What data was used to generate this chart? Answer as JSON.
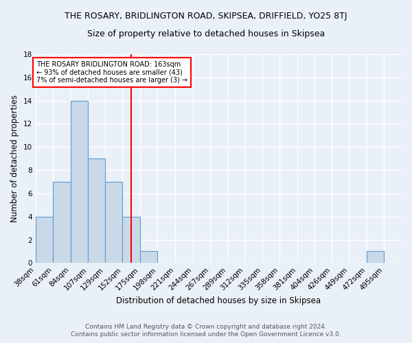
{
  "title": "THE ROSARY, BRIDLINGTON ROAD, SKIPSEA, DRIFFIELD, YO25 8TJ",
  "subtitle": "Size of property relative to detached houses in Skipsea",
  "xlabel": "Distribution of detached houses by size in Skipsea",
  "ylabel": "Number of detached properties",
  "bin_labels": [
    "38sqm",
    "61sqm",
    "84sqm",
    "107sqm",
    "129sqm",
    "152sqm",
    "175sqm",
    "198sqm",
    "221sqm",
    "244sqm",
    "267sqm",
    "289sqm",
    "312sqm",
    "335sqm",
    "358sqm",
    "381sqm",
    "404sqm",
    "426sqm",
    "449sqm",
    "472sqm",
    "495sqm"
  ],
  "bin_edges": [
    38,
    61,
    84,
    107,
    129,
    152,
    175,
    198,
    221,
    244,
    267,
    289,
    312,
    335,
    358,
    381,
    404,
    426,
    449,
    472,
    495
  ],
  "bar_heights": [
    4,
    7,
    14,
    9,
    7,
    4,
    1,
    0,
    0,
    0,
    0,
    0,
    0,
    0,
    0,
    0,
    0,
    0,
    0,
    1,
    0
  ],
  "bar_color": "#c9d9e8",
  "bar_edge_color": "#5b9bd5",
  "ref_line_x": 163,
  "ref_line_color": "red",
  "annotation_title": "THE ROSARY BRIDLINGTON ROAD: 163sqm",
  "annotation_line1": "← 93% of detached houses are smaller (43)",
  "annotation_line2": "7% of semi-detached houses are larger (3) →",
  "annotation_box_color": "white",
  "annotation_box_edge": "red",
  "ylim": [
    0,
    18
  ],
  "yticks": [
    0,
    2,
    4,
    6,
    8,
    10,
    12,
    14,
    16,
    18
  ],
  "footer1": "Contains HM Land Registry data © Crown copyright and database right 2024.",
  "footer2": "Contains public sector information licensed under the Open Government Licence v3.0.",
  "bg_color": "#eaf0f7",
  "plot_bg_color": "#eaf0f7",
  "grid_color": "#ffffff",
  "title_fontsize": 9,
  "subtitle_fontsize": 9,
  "axis_fontsize": 8.5,
  "tick_fontsize": 7.5,
  "footer_fontsize": 6.5
}
